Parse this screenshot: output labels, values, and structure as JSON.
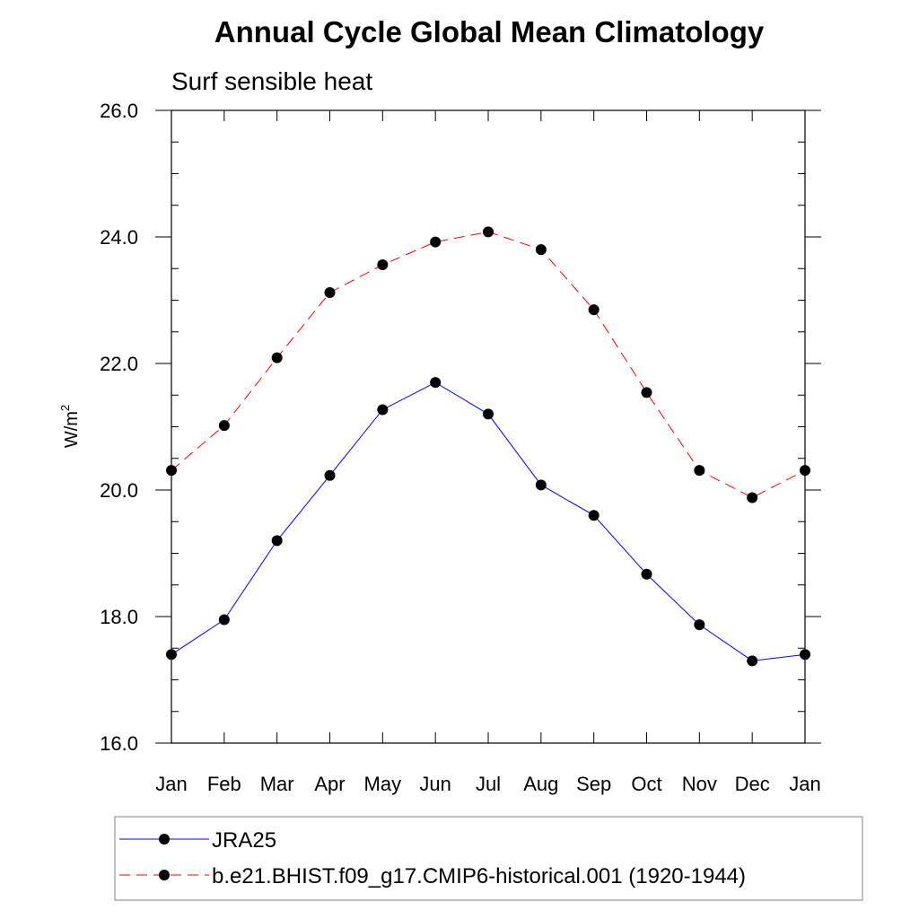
{
  "chart_data": {
    "type": "line",
    "title": "Annual Cycle Global Mean Climatology",
    "subtitle": "Surf sensible heat",
    "ylabel_base": "W/m",
    "ylabel_sup": "2",
    "xlabel": "",
    "categories": [
      "Jan",
      "Feb",
      "Mar",
      "Apr",
      "May",
      "Jun",
      "Jul",
      "Aug",
      "Sep",
      "Oct",
      "Nov",
      "Dec",
      "Jan"
    ],
    "ylim": [
      16.0,
      26.0
    ],
    "yticks": [
      "16.0",
      "18.0",
      "20.0",
      "22.0",
      "24.0",
      "26.0"
    ],
    "grid": false,
    "legend_position": "bottom",
    "series": [
      {
        "name": "JRA25",
        "color": "#0000ff",
        "dashed": false,
        "values": [
          17.4,
          17.95,
          19.2,
          20.23,
          21.27,
          21.7,
          21.2,
          20.08,
          19.6,
          18.67,
          17.87,
          17.3,
          17.4
        ]
      },
      {
        "name": "b.e21.BHIST.f09_g17.CMIP6-historical.001 (1920-1944)",
        "color": "#ff0000",
        "dashed": true,
        "values": [
          20.31,
          21.02,
          22.09,
          23.12,
          23.56,
          23.92,
          24.08,
          23.8,
          22.85,
          21.54,
          20.31,
          19.88,
          20.31
        ]
      }
    ]
  }
}
